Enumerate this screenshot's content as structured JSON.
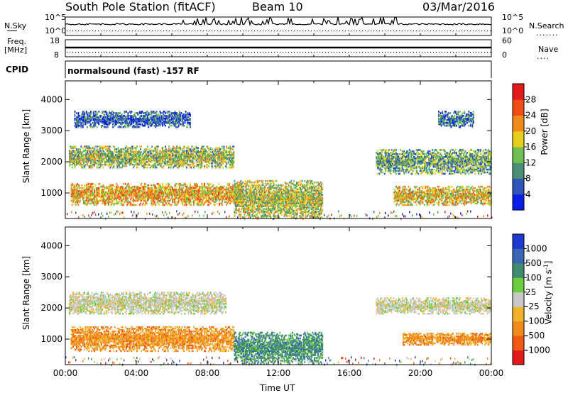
{
  "header": {
    "station": "South Pole Station (fitACF)",
    "beam": "Beam 10",
    "date": "03/Mar/2016",
    "program": "normalsound (fast) -157 RF"
  },
  "aux_panels": {
    "nsky": {
      "label": "N.Sky",
      "ticks": [
        "10^5",
        "10^0"
      ]
    },
    "nsearch": {
      "label": "N.Search",
      "ticks": [
        "10^5",
        "10^0"
      ]
    },
    "freq": {
      "label_line1": "Freq.",
      "label_line2": "[MHz]",
      "ticks": [
        "18",
        "8"
      ]
    },
    "nave": {
      "label": "Nave",
      "ticks": [
        "60",
        "0"
      ]
    },
    "cpid": {
      "label": "CPID"
    }
  },
  "chart_data": [
    {
      "type": "heatmap",
      "name": "power",
      "xlabel": "",
      "ylabel": "Slant Range [km]",
      "xlim": [
        "00:00",
        "24:00"
      ],
      "ylim": [
        180,
        4600
      ],
      "yticks": [
        1000,
        2000,
        3000,
        4000
      ],
      "colorbar": {
        "label": "Power [dB]",
        "ticks": [
          "4",
          "8",
          "12",
          "16",
          "20",
          "24",
          "28"
        ],
        "range": [
          0,
          30
        ],
        "colors": [
          "#0a1ee6",
          "#2f55b8",
          "#4a8f73",
          "#6fc053",
          "#e6cf1c",
          "#f08a1a",
          "#f04e14",
          "#e31a1a"
        ]
      },
      "regions": [
        {
          "t": [
            0.3,
            10.0
          ],
          "r": [
            600,
            1300
          ],
          "level": 0.65
        },
        {
          "t": [
            0.2,
            9.5
          ],
          "r": [
            1800,
            2500
          ],
          "level": 0.45
        },
        {
          "t": [
            0.5,
            7.0
          ],
          "r": [
            3100,
            3600
          ],
          "level": 0.15
        },
        {
          "t": [
            9.5,
            14.5
          ],
          "r": [
            200,
            1400
          ],
          "level": 0.5
        },
        {
          "t": [
            17.5,
            24.0
          ],
          "r": [
            1600,
            2400
          ],
          "level": 0.35
        },
        {
          "t": [
            18.5,
            24.0
          ],
          "r": [
            600,
            1200
          ],
          "level": 0.6
        },
        {
          "t": [
            21.0,
            23.0
          ],
          "r": [
            3100,
            3600
          ],
          "level": 0.2
        }
      ]
    },
    {
      "type": "heatmap",
      "name": "velocity",
      "xlabel": "Time UT",
      "ylabel": "Slant Range [km]",
      "xlim": [
        "00:00",
        "24:00"
      ],
      "ylim": [
        180,
        4600
      ],
      "yticks": [
        1000,
        2000,
        3000,
        4000
      ],
      "xticks": [
        "00:00",
        "04:00",
        "08:00",
        "12:00",
        "16:00",
        "20:00",
        "00:00"
      ],
      "colorbar": {
        "label": "Velocity [m s",
        "label_exp": "-1",
        "label_end": "]",
        "ticks": [
          "1000",
          "500",
          "100",
          "25",
          "-25",
          "-100",
          "-500",
          "-1000"
        ],
        "colors": [
          "#1e3ad0",
          "#3a66b8",
          "#3f8d6e",
          "#6ccd3f",
          "#c8c8c8",
          "#f0b22a",
          "#f08a1a",
          "#f05a14",
          "#e31a1a"
        ]
      },
      "regions": [
        {
          "t": [
            0.3,
            9.5
          ],
          "r": [
            600,
            1400
          ],
          "level": "orange"
        },
        {
          "t": [
            0.2,
            9.0
          ],
          "r": [
            1800,
            2500
          ],
          "level": "gray"
        },
        {
          "t": [
            9.5,
            14.5
          ],
          "r": [
            200,
            1200
          ],
          "level": "green"
        },
        {
          "t": [
            19.0,
            24.0
          ],
          "r": [
            800,
            1200
          ],
          "level": "orange"
        },
        {
          "t": [
            17.5,
            24.0
          ],
          "r": [
            1800,
            2300
          ],
          "level": "gray"
        }
      ]
    }
  ]
}
